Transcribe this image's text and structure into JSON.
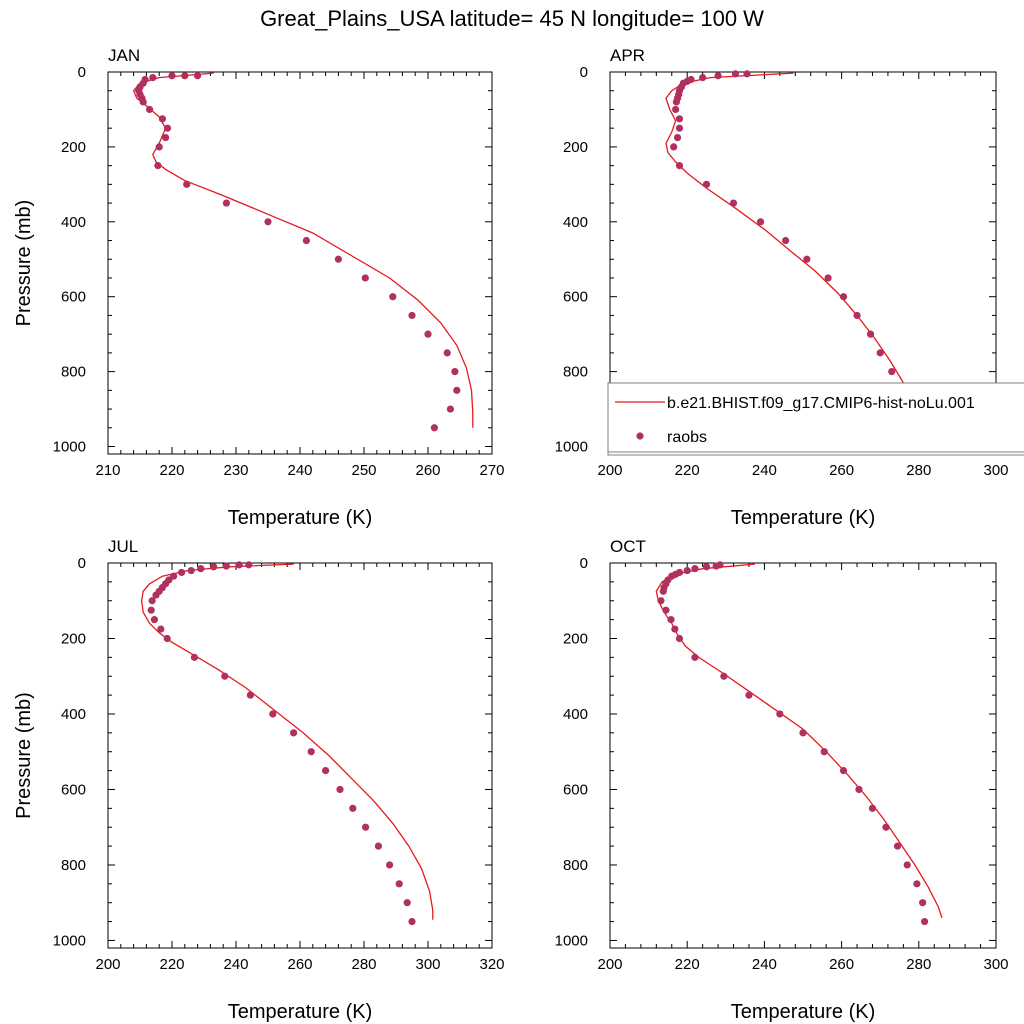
{
  "figure": {
    "title": "Great_Plains_USA  latitude= 45 N longitude= 100 W"
  },
  "colors": {
    "model_line": "#e8191c",
    "raobs_marker": "#b03060",
    "axis": "#000000",
    "legend_border": "#7f7f7f"
  },
  "legend": {
    "entries": [
      {
        "label": "b.e21.BHIST.f09_g17.CMIP6-hist-noLu.001",
        "style": "line",
        "color": "#e8191c"
      },
      {
        "label": "raobs",
        "style": "marker",
        "color": "#b03060"
      }
    ],
    "panel": "APR"
  },
  "chart_data": [
    {
      "type": "line",
      "panel": "JAN",
      "title": "JAN",
      "xlabel": "Temperature (K)",
      "ylabel": "Pressure (mb)",
      "xlim": [
        210,
        270
      ],
      "ylim": [
        1020,
        0
      ],
      "xticks": [
        210,
        220,
        230,
        240,
        250,
        260,
        270
      ],
      "yticks": [
        0,
        200,
        400,
        600,
        800,
        1000
      ],
      "model": {
        "style": "line",
        "points": [
          [
            226.5,
            3
          ],
          [
            218,
            15
          ],
          [
            215,
            30
          ],
          [
            214,
            50
          ],
          [
            214.5,
            70
          ],
          [
            216,
            90
          ],
          [
            218,
            120
          ],
          [
            219,
            150
          ],
          [
            218,
            190
          ],
          [
            217,
            220
          ],
          [
            217.5,
            240
          ],
          [
            219,
            260
          ],
          [
            222,
            290
          ],
          [
            228,
            330
          ],
          [
            235,
            380
          ],
          [
            242,
            430
          ],
          [
            248,
            490
          ],
          [
            254,
            550
          ],
          [
            258.5,
            610
          ],
          [
            262,
            670
          ],
          [
            264.5,
            730
          ],
          [
            266,
            790
          ],
          [
            266.8,
            850
          ],
          [
            267,
            910
          ],
          [
            267,
            950
          ]
        ]
      },
      "raobs": {
        "style": "marker",
        "points": [
          [
            224,
            10
          ],
          [
            222,
            10
          ],
          [
            220,
            10
          ],
          [
            217,
            15
          ],
          [
            215.8,
            20
          ],
          [
            215.5,
            30
          ],
          [
            215,
            40
          ],
          [
            214.8,
            50
          ],
          [
            215,
            60
          ],
          [
            215.3,
            70
          ],
          [
            215.5,
            80
          ],
          [
            216.5,
            100
          ],
          [
            218.5,
            125
          ],
          [
            219.3,
            150
          ],
          [
            219,
            175
          ],
          [
            218,
            200
          ],
          [
            217.8,
            250
          ],
          [
            222.3,
            300
          ],
          [
            228.5,
            350
          ],
          [
            235,
            400
          ],
          [
            241,
            450
          ],
          [
            246,
            500
          ],
          [
            250.2,
            550
          ],
          [
            254.5,
            600
          ],
          [
            257.5,
            650
          ],
          [
            260,
            700
          ],
          [
            263,
            750
          ],
          [
            264.2,
            800
          ],
          [
            264.5,
            850
          ],
          [
            263.5,
            900
          ],
          [
            261,
            950
          ]
        ]
      }
    },
    {
      "type": "line",
      "panel": "APR",
      "title": "APR",
      "xlabel": "Temperature (K)",
      "ylabel": "Pressure (mb)",
      "xlim": [
        200,
        300
      ],
      "ylim": [
        1020,
        0
      ],
      "xticks": [
        200,
        220,
        240,
        260,
        280,
        300
      ],
      "yticks": [
        0,
        200,
        400,
        600,
        800,
        1000
      ],
      "model": {
        "style": "line",
        "points": [
          [
            247.5,
            3
          ],
          [
            226,
            15
          ],
          [
            219,
            30
          ],
          [
            216,
            50
          ],
          [
            214.5,
            70
          ],
          [
            215.5,
            100
          ],
          [
            217,
            130
          ],
          [
            216,
            160
          ],
          [
            214.5,
            190
          ],
          [
            215,
            215
          ],
          [
            217,
            240
          ],
          [
            220,
            270
          ],
          [
            225,
            310
          ],
          [
            232,
            360
          ],
          [
            240,
            420
          ],
          [
            247,
            480
          ],
          [
            253,
            530
          ],
          [
            259,
            590
          ],
          [
            264,
            650
          ],
          [
            268.5,
            710
          ],
          [
            272.5,
            770
          ],
          [
            276,
            830
          ],
          [
            279,
            880
          ],
          [
            281.5,
            920
          ],
          [
            283,
            940
          ]
        ]
      },
      "raobs": {
        "style": "marker",
        "points": [
          [
            235.5,
            5
          ],
          [
            232.5,
            5
          ],
          [
            228,
            10
          ],
          [
            224,
            15
          ],
          [
            221,
            20
          ],
          [
            220,
            25
          ],
          [
            219,
            30
          ],
          [
            218.5,
            40
          ],
          [
            218,
            50
          ],
          [
            217.8,
            60
          ],
          [
            217.5,
            70
          ],
          [
            217.2,
            80
          ],
          [
            217,
            100
          ],
          [
            218,
            125
          ],
          [
            218,
            150
          ],
          [
            217.5,
            175
          ],
          [
            216.5,
            200
          ],
          [
            218,
            250
          ],
          [
            225,
            300
          ],
          [
            232,
            350
          ],
          [
            239,
            400
          ],
          [
            245.5,
            450
          ],
          [
            251,
            500
          ],
          [
            256.5,
            550
          ],
          [
            260.5,
            600
          ],
          [
            264,
            650
          ],
          [
            267.5,
            700
          ],
          [
            270,
            750
          ],
          [
            273,
            800
          ],
          [
            275.5,
            850
          ],
          [
            278,
            900
          ],
          [
            279.5,
            950
          ]
        ]
      }
    },
    {
      "type": "line",
      "panel": "JUL",
      "title": "JUL",
      "xlabel": "Temperature (K)",
      "ylabel": "Pressure (mb)",
      "xlim": [
        200,
        320
      ],
      "ylim": [
        1020,
        0
      ],
      "xticks": [
        200,
        220,
        240,
        260,
        280,
        300,
        320
      ],
      "yticks": [
        0,
        200,
        400,
        600,
        800,
        1000
      ],
      "model": {
        "style": "line",
        "points": [
          [
            258,
            3
          ],
          [
            238,
            10
          ],
          [
            225,
            20
          ],
          [
            217,
            35
          ],
          [
            213,
            55
          ],
          [
            211,
            75
          ],
          [
            210.5,
            100
          ],
          [
            211,
            130
          ],
          [
            213,
            160
          ],
          [
            216,
            185
          ],
          [
            220,
            210
          ],
          [
            226,
            240
          ],
          [
            234,
            280
          ],
          [
            243,
            330
          ],
          [
            252,
            390
          ],
          [
            261,
            450
          ],
          [
            269,
            510
          ],
          [
            276,
            570
          ],
          [
            283,
            630
          ],
          [
            289,
            690
          ],
          [
            294,
            750
          ],
          [
            298,
            810
          ],
          [
            300.5,
            870
          ],
          [
            301.5,
            920
          ],
          [
            301.5,
            945
          ]
        ]
      },
      "raobs": {
        "style": "marker",
        "points": [
          [
            244,
            5
          ],
          [
            241,
            5
          ],
          [
            237,
            8
          ],
          [
            233,
            10
          ],
          [
            229,
            15
          ],
          [
            226,
            20
          ],
          [
            223,
            25
          ],
          [
            220.5,
            35
          ],
          [
            219,
            45
          ],
          [
            218,
            55
          ],
          [
            217,
            65
          ],
          [
            216,
            75
          ],
          [
            215,
            85
          ],
          [
            213.8,
            100
          ],
          [
            213.5,
            125
          ],
          [
            214.5,
            150
          ],
          [
            216.5,
            175
          ],
          [
            218.5,
            200
          ],
          [
            227,
            250
          ],
          [
            236.5,
            300
          ],
          [
            244.5,
            350
          ],
          [
            251.5,
            400
          ],
          [
            258,
            450
          ],
          [
            263.5,
            500
          ],
          [
            268,
            550
          ],
          [
            272.5,
            600
          ],
          [
            276.5,
            650
          ],
          [
            280.5,
            700
          ],
          [
            284.5,
            750
          ],
          [
            288,
            800
          ],
          [
            291,
            850
          ],
          [
            293.5,
            900
          ],
          [
            295,
            950
          ]
        ]
      }
    },
    {
      "type": "line",
      "panel": "OCT",
      "title": "OCT",
      "xlabel": "Temperature (K)",
      "ylabel": "Pressure (mb)",
      "xlim": [
        200,
        300
      ],
      "ylim": [
        1020,
        0
      ],
      "xticks": [
        200,
        220,
        240,
        260,
        280,
        300
      ],
      "yticks": [
        0,
        200,
        400,
        600,
        800,
        1000
      ],
      "model": {
        "style": "line",
        "points": [
          [
            237.5,
            3
          ],
          [
            224,
            15
          ],
          [
            217,
            30
          ],
          [
            213.5,
            50
          ],
          [
            212,
            75
          ],
          [
            212.5,
            100
          ],
          [
            214,
            130
          ],
          [
            216,
            160
          ],
          [
            217.5,
            190
          ],
          [
            219.5,
            220
          ],
          [
            223,
            250
          ],
          [
            229,
            290
          ],
          [
            236,
            340
          ],
          [
            243,
            390
          ],
          [
            250,
            440
          ],
          [
            256,
            500
          ],
          [
            261.5,
            560
          ],
          [
            266.5,
            620
          ],
          [
            271,
            680
          ],
          [
            275,
            740
          ],
          [
            279,
            800
          ],
          [
            282.5,
            860
          ],
          [
            285,
            910
          ],
          [
            286,
            940
          ]
        ]
      },
      "raobs": {
        "style": "marker",
        "points": [
          [
            228.5,
            5
          ],
          [
            227.5,
            8
          ],
          [
            225,
            10
          ],
          [
            222,
            15
          ],
          [
            220,
            20
          ],
          [
            218,
            25
          ],
          [
            217,
            30
          ],
          [
            216,
            35
          ],
          [
            215,
            45
          ],
          [
            214.5,
            55
          ],
          [
            214,
            65
          ],
          [
            213.8,
            75
          ],
          [
            213.2,
            100
          ],
          [
            214.5,
            125
          ],
          [
            215.8,
            150
          ],
          [
            216.8,
            175
          ],
          [
            218,
            200
          ],
          [
            222,
            250
          ],
          [
            229.5,
            300
          ],
          [
            236,
            350
          ],
          [
            244,
            400
          ],
          [
            250,
            450
          ],
          [
            255.5,
            500
          ],
          [
            260.5,
            550
          ],
          [
            264.5,
            600
          ],
          [
            268,
            650
          ],
          [
            271.5,
            700
          ],
          [
            274.5,
            750
          ],
          [
            277,
            800
          ],
          [
            279.5,
            850
          ],
          [
            281,
            900
          ],
          [
            281.5,
            950
          ]
        ]
      }
    }
  ]
}
